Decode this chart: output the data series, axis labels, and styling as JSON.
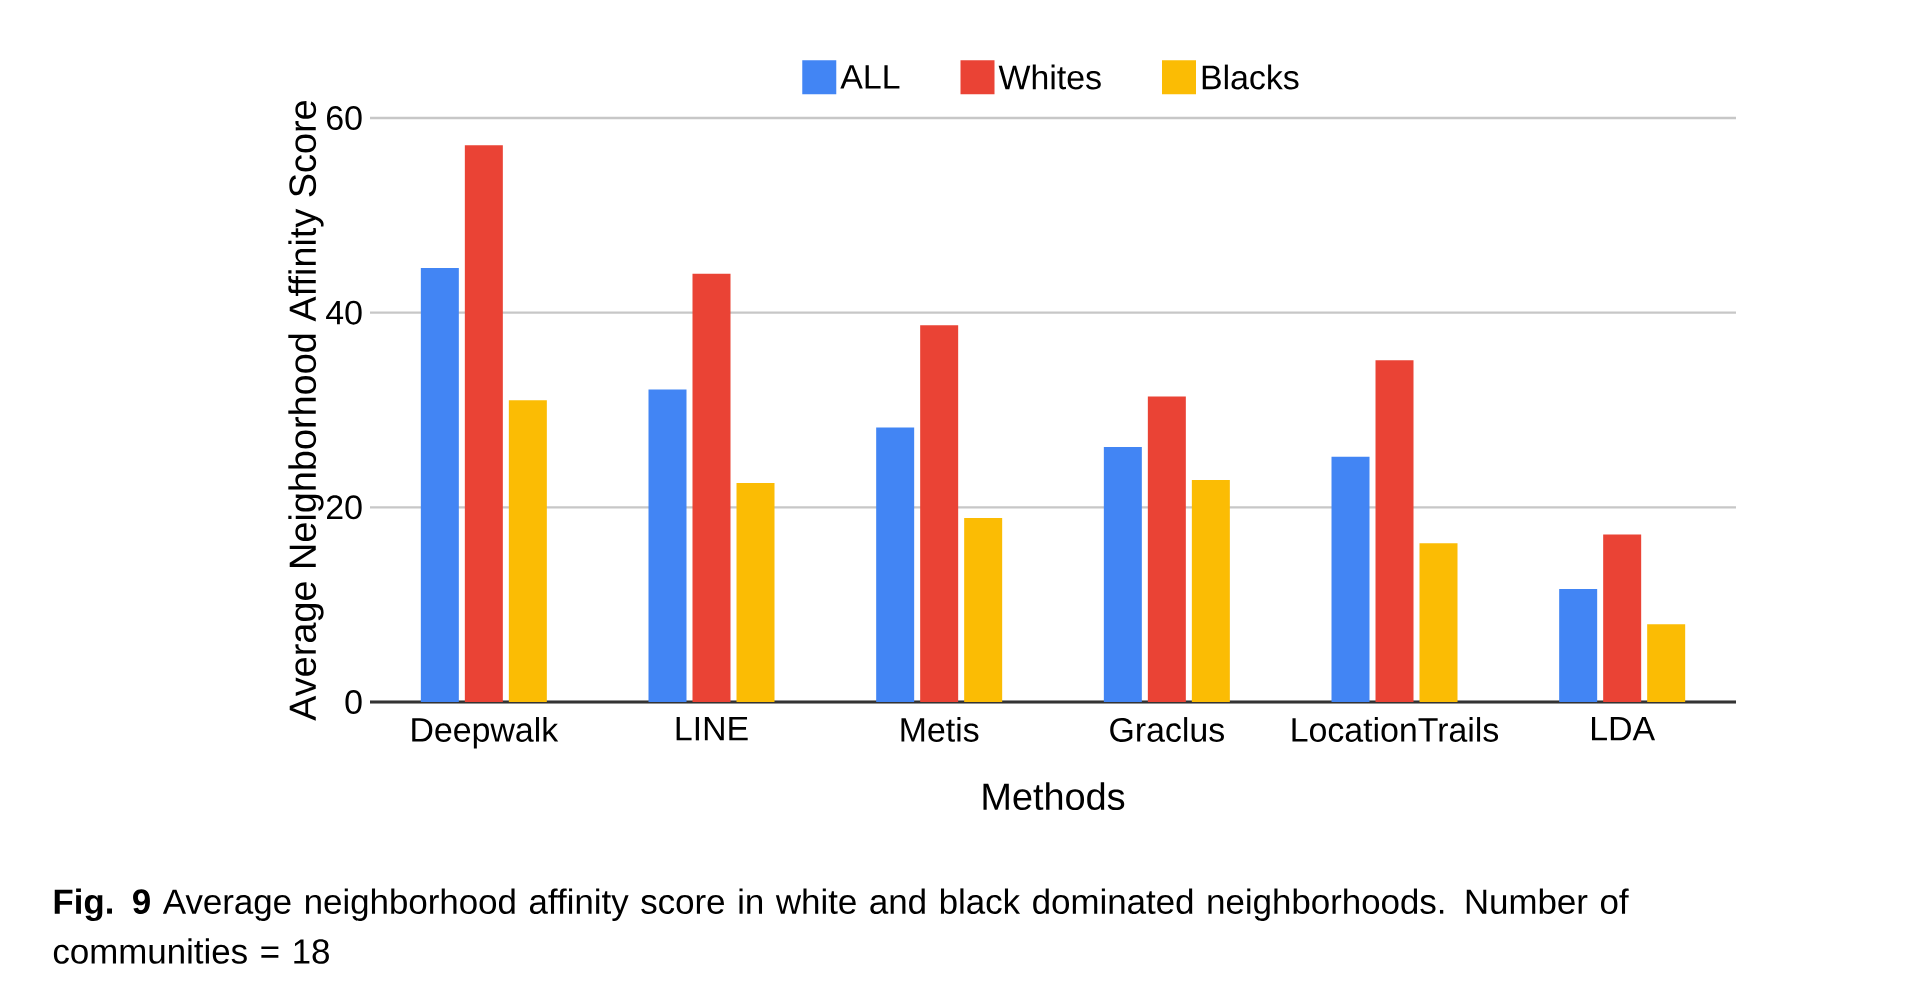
{
  "chart_data": {
    "type": "bar",
    "xlabel": "Methods",
    "ylabel": "Average Neighborhood Affinity Score",
    "categories": [
      "Deepwalk",
      "LINE",
      "Metis",
      "Graclus",
      "LocationTrails",
      "LDA"
    ],
    "series": [
      {
        "name": "ALL",
        "color": "#4285f4",
        "values": [
          44.6,
          32.1,
          28.2,
          26.2,
          25.2,
          11.6
        ]
      },
      {
        "name": "Whites",
        "color": "#ea4335",
        "values": [
          57.2,
          44.0,
          38.7,
          31.4,
          35.1,
          17.2
        ]
      },
      {
        "name": "Blacks",
        "color": "#fbbc04",
        "values": [
          31.0,
          22.5,
          18.9,
          22.8,
          16.3,
          8.0
        ]
      }
    ],
    "ylim": [
      0,
      60
    ],
    "yticks": [
      0,
      20,
      40,
      60
    ],
    "grid": "y",
    "legend": "top",
    "annotations": [
      "**Fig. 9**  Average neighborhood affinity score in white and black dominated neighborhoods. Number of communities = 18"
    ]
  }
}
